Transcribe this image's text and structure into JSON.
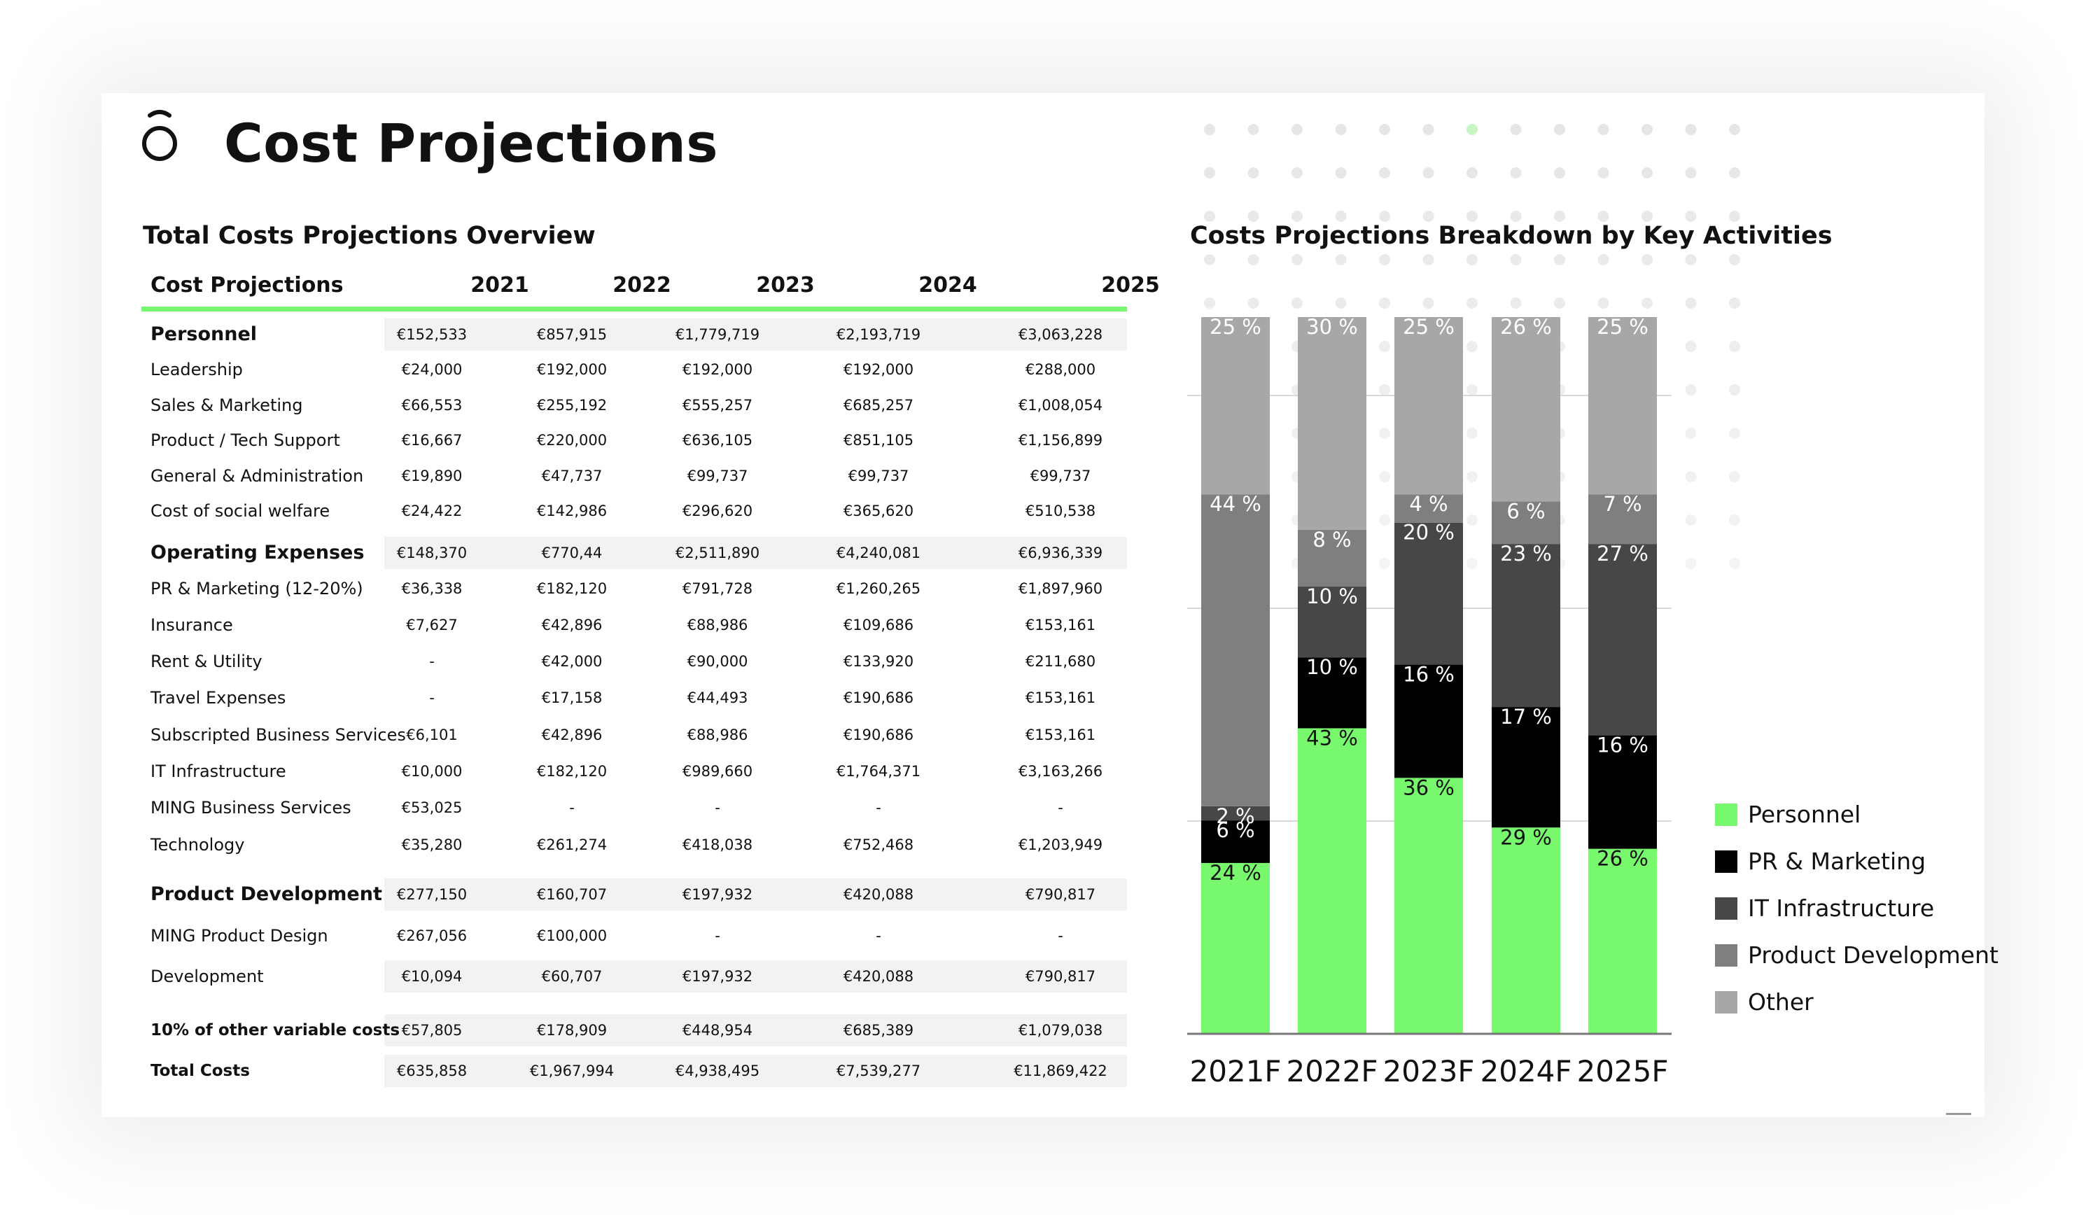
{
  "header": {
    "title": "Cost Projections"
  },
  "table": {
    "title": "Total Costs Projections Overview",
    "columns": [
      "Cost Projections",
      "2021",
      "2022",
      "2023",
      "2024",
      "2025"
    ],
    "rows": [
      {
        "label": "Personnel",
        "values": [
          "€152,533",
          "€857,915",
          "€1,779,719",
          "€2,193,719",
          "€3,063,228"
        ]
      },
      {
        "label": "Leadership",
        "values": [
          "€24,000",
          "€192,000",
          "€192,000",
          "€192,000",
          "€288,000"
        ]
      },
      {
        "label": "Sales & Marketing",
        "values": [
          "€66,553",
          "€255,192",
          "€555,257",
          "€685,257",
          "€1,008,054"
        ]
      },
      {
        "label": "Product / Tech Support",
        "values": [
          "€16,667",
          "€220,000",
          "€636,105",
          "€851,105",
          "€1,156,899"
        ]
      },
      {
        "label": "General & Administration",
        "values": [
          "€19,890",
          "€47,737",
          "€99,737",
          "€99,737",
          "€99,737"
        ]
      },
      {
        "label": "Cost of social welfare",
        "values": [
          "€24,422",
          "€142,986",
          "€296,620",
          "€365,620",
          "€510,538"
        ]
      },
      {
        "label": "Operating Expenses",
        "values": [
          "€148,370",
          "€770,44",
          "€2,511,890",
          "€4,240,081",
          "€6,936,339"
        ]
      },
      {
        "label": "PR & Marketing  (12-20%)",
        "values": [
          "€36,338",
          "€182,120",
          "€791,728",
          "€1,260,265",
          "€1,897,960"
        ]
      },
      {
        "label": "Insurance",
        "values": [
          "€7,627",
          "€42,896",
          "€88,986",
          "€109,686",
          "€153,161"
        ]
      },
      {
        "label": "Rent & Utility",
        "values": [
          "-",
          "€42,000",
          "€90,000",
          "€133,920",
          "€211,680"
        ]
      },
      {
        "label": "Travel Expenses",
        "values": [
          "-",
          "€17,158",
          "€44,493",
          "€190,686",
          "€153,161"
        ]
      },
      {
        "label": "Subscripted Business Services",
        "values": [
          "€6,101",
          "€42,896",
          "€88,986",
          "€190,686",
          "€153,161"
        ]
      },
      {
        "label": "IT Infrastructure",
        "values": [
          "€10,000",
          "€182,120",
          "€989,660",
          "€1,764,371",
          "€3,163,266"
        ]
      },
      {
        "label": "MING Business Services",
        "values": [
          "€53,025",
          "-",
          "-",
          "-",
          "-"
        ]
      },
      {
        "label": "Technology",
        "values": [
          "€35,280",
          "€261,274",
          "€418,038",
          "€752,468",
          "€1,203,949"
        ]
      },
      {
        "label": "Product Development",
        "values": [
          "€277,150",
          "€160,707",
          "€197,932",
          "€420,088",
          "€790,817"
        ]
      },
      {
        "label": "MING Product Design",
        "values": [
          "€267,056",
          "€100,000",
          "-",
          "-",
          "-"
        ]
      },
      {
        "label": "Development",
        "values": [
          "€10,094",
          "€60,707",
          "€197,932",
          "€420,088",
          "€790,817"
        ]
      },
      {
        "label": "10% of other variable costs",
        "values": [
          "€57,805",
          "€178,909",
          "€448,954",
          "€685,389",
          "€1,079,038"
        ]
      },
      {
        "label": "Total Costs",
        "values": [
          "€635,858",
          "€1,967,994",
          "€4,938,495",
          "€7,539,277",
          "€11,869,422"
        ]
      }
    ]
  },
  "chart_data": {
    "type": "bar",
    "stacked": true,
    "percent": true,
    "title": "Costs Projections Breakdown by Key Activities",
    "categories": [
      "2021F",
      "2022F",
      "2023F",
      "2024F",
      "2025F"
    ],
    "series": [
      {
        "name": "Personnel",
        "color": "#78f86c",
        "values": [
          24,
          43,
          36,
          29,
          26
        ],
        "labels": [
          "24 %",
          "43 %",
          "36 %",
          "29 %",
          "26 %"
        ]
      },
      {
        "name": "PR & Marketing",
        "color": "#000000",
        "values": [
          6,
          10,
          16,
          17,
          16
        ],
        "labels": [
          "6 %",
          "10 %",
          "16 %",
          "17 %",
          "16 %"
        ]
      },
      {
        "name": "IT Infrastructure",
        "color": "#474747",
        "values": [
          2,
          10,
          20,
          23,
          27
        ],
        "labels": [
          "2 %",
          "10 %",
          "20 %",
          "23 %",
          "27 %"
        ]
      },
      {
        "name": "Product Development",
        "color": "#7f7f7f",
        "values": [
          44,
          8,
          4,
          6,
          7
        ],
        "labels": [
          "44 %",
          "8 %",
          "4 %",
          "6 %",
          "7 %"
        ]
      },
      {
        "name": "Other",
        "color": "#a7a7a7",
        "values": [
          25,
          30,
          25,
          26,
          25
        ],
        "labels": [
          "25 %",
          "30 %",
          "25 %",
          "26 %",
          "25 %"
        ]
      }
    ],
    "legend_position": "right",
    "grid": true
  }
}
